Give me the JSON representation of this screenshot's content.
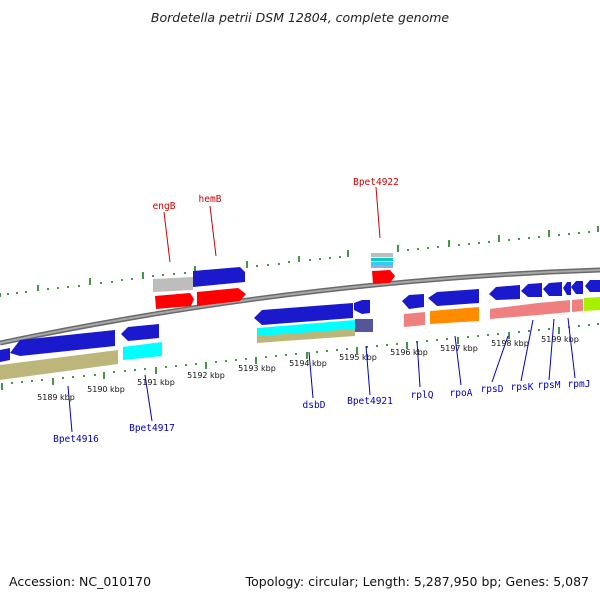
{
  "title": "Bordetella petrii DSM 12804, complete genome",
  "footer": {
    "accession": "Accession: NC_010170",
    "summary": "Topology: circular; Length: 5,287,950 bp; Genes: 5,087"
  },
  "colors": {
    "upper_label": "#cc0000",
    "lower_label": "#0000bb",
    "tick": "#1a7a1a",
    "backbone": "#8c8c8c"
  },
  "scale_labels": [
    "5189 kbp",
    "5190 kbp",
    "5191 kbp",
    "5192 kbp",
    "5193 kbp",
    "5194 kbp",
    "5195 kbp",
    "5196 kbp",
    "5197 kbp",
    "5198 kbp",
    "5199 kbp"
  ],
  "upper_gene_labels": [
    "engB",
    "hemB",
    "Bpet4922"
  ],
  "lower_gene_labels": [
    "Bpet4916",
    "Bpet4917",
    "dsbD",
    "Bpet4921",
    "rplQ",
    "rpoA",
    "rpsD",
    "rpsK",
    "rpsM",
    "rpmJ"
  ]
}
